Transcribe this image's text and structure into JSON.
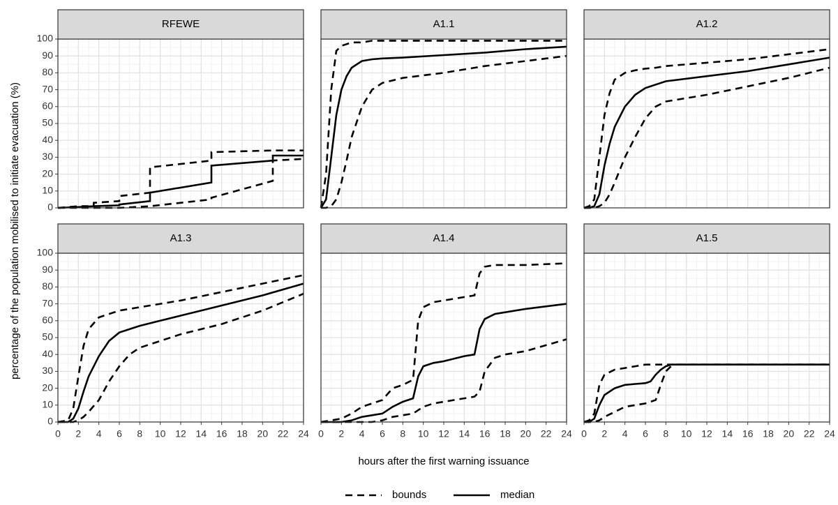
{
  "chart_data": [
    {
      "type": "line",
      "title": "RFEWE",
      "xlim": [
        0,
        24
      ],
      "ylim": [
        0,
        100
      ],
      "xticks": [
        0,
        2,
        4,
        6,
        8,
        10,
        12,
        14,
        16,
        18,
        20,
        22,
        24
      ],
      "yticks": [
        0,
        10,
        20,
        30,
        40,
        50,
        60,
        70,
        80,
        90,
        100
      ],
      "grid": true,
      "x": [
        0,
        2,
        3.5,
        3.5,
        6,
        6,
        9,
        9,
        15,
        15,
        21,
        21,
        24
      ],
      "series": [
        {
          "name": "bounds",
          "color": "#000000",
          "linestyle": "dashed",
          "values": [
            0,
            1,
            1,
            3,
            4,
            7,
            9,
            24,
            28,
            33,
            34,
            34,
            34
          ]
        },
        {
          "name": "bounds",
          "color": "#000000",
          "linestyle": "dashed",
          "values": [
            0,
            0,
            0,
            0,
            0,
            0,
            1,
            1,
            5,
            6,
            16,
            28,
            29
          ]
        },
        {
          "name": "median",
          "color": "#000000",
          "linestyle": "solid",
          "values": [
            0,
            0.5,
            1,
            1,
            1.5,
            2,
            4,
            9,
            15,
            25,
            28,
            31,
            31
          ]
        }
      ]
    },
    {
      "type": "line",
      "title": "A1.1",
      "xlim": [
        0,
        24
      ],
      "ylim": [
        0,
        100
      ],
      "xticks": [
        0,
        2,
        4,
        6,
        8,
        10,
        12,
        14,
        16,
        18,
        20,
        22,
        24
      ],
      "yticks": [
        0,
        10,
        20,
        30,
        40,
        50,
        60,
        70,
        80,
        90,
        100
      ],
      "grid": true,
      "x": [
        0,
        0.5,
        1,
        1.5,
        2,
        2.5,
        3,
        4,
        5,
        6,
        8,
        12,
        16,
        20,
        24
      ],
      "series": [
        {
          "name": "bounds",
          "color": "#000000",
          "linestyle": "dashed",
          "values": [
            0,
            20,
            70,
            93,
            96,
            97,
            98,
            98,
            99,
            99,
            99,
            99,
            99,
            99,
            99
          ]
        },
        {
          "name": "bounds",
          "color": "#000000",
          "linestyle": "dashed",
          "values": [
            0,
            0,
            1,
            5,
            15,
            28,
            42,
            60,
            70,
            74,
            77,
            80,
            84,
            87,
            90
          ]
        },
        {
          "name": "median",
          "color": "#000000",
          "linestyle": "solid",
          "values": [
            0,
            5,
            30,
            55,
            70,
            78,
            83,
            87,
            88,
            88.5,
            89,
            90.5,
            92,
            94,
            95.5
          ]
        }
      ]
    },
    {
      "type": "line",
      "title": "A1.2",
      "xlim": [
        0,
        24
      ],
      "ylim": [
        0,
        100
      ],
      "xticks": [
        0,
        2,
        4,
        6,
        8,
        10,
        12,
        14,
        16,
        18,
        20,
        22,
        24
      ],
      "yticks": [
        0,
        10,
        20,
        30,
        40,
        50,
        60,
        70,
        80,
        90,
        100
      ],
      "grid": true,
      "x": [
        0,
        0.5,
        1,
        1.5,
        2,
        2.5,
        3,
        4,
        5,
        6,
        7,
        8,
        12,
        16,
        20,
        24
      ],
      "series": [
        {
          "name": "bounds",
          "color": "#000000",
          "linestyle": "dashed",
          "values": [
            0,
            1,
            5,
            30,
            55,
            68,
            76,
            80,
            81.5,
            82.5,
            83,
            84,
            86,
            88,
            91,
            94
          ]
        },
        {
          "name": "bounds",
          "color": "#000000",
          "linestyle": "dashed",
          "values": [
            0,
            0,
            0,
            1,
            3,
            8,
            15,
            30,
            42,
            53,
            60,
            63,
            67,
            72,
            77,
            83
          ]
        },
        {
          "name": "median",
          "color": "#000000",
          "linestyle": "solid",
          "values": [
            0,
            0,
            1,
            8,
            25,
            38,
            48,
            60,
            67,
            71,
            73,
            75,
            78,
            81,
            85,
            89
          ]
        }
      ]
    },
    {
      "type": "line",
      "title": "A1.3",
      "xlim": [
        0,
        24
      ],
      "ylim": [
        0,
        100
      ],
      "xticks": [
        0,
        2,
        4,
        6,
        8,
        10,
        12,
        14,
        16,
        18,
        20,
        22,
        24
      ],
      "yticks": [
        0,
        10,
        20,
        30,
        40,
        50,
        60,
        70,
        80,
        90,
        100
      ],
      "grid": true,
      "x": [
        0,
        1,
        1.5,
        2,
        2.5,
        3,
        4,
        5,
        6,
        7,
        8,
        10,
        12,
        16,
        20,
        24
      ],
      "series": [
        {
          "name": "bounds",
          "color": "#000000",
          "linestyle": "dashed",
          "values": [
            0,
            1,
            8,
            27,
            45,
            55,
            62,
            64,
            66,
            67,
            68,
            70,
            72,
            77,
            82,
            87
          ]
        },
        {
          "name": "bounds",
          "color": "#000000",
          "linestyle": "dashed",
          "values": [
            0,
            0,
            0,
            1,
            3,
            6,
            13,
            24,
            33,
            40,
            44,
            48,
            52,
            58,
            66,
            76
          ]
        },
        {
          "name": "median",
          "color": "#000000",
          "linestyle": "solid",
          "values": [
            0,
            0,
            2,
            8,
            18,
            27,
            39,
            48,
            53,
            55,
            57,
            60,
            63,
            69,
            75,
            82
          ]
        }
      ]
    },
    {
      "type": "line",
      "title": "A1.4",
      "xlim": [
        0,
        24
      ],
      "ylim": [
        0,
        100
      ],
      "xticks": [
        0,
        2,
        4,
        6,
        8,
        10,
        12,
        14,
        16,
        18,
        20,
        22,
        24
      ],
      "yticks": [
        0,
        10,
        20,
        30,
        40,
        50,
        60,
        70,
        80,
        90,
        100
      ],
      "grid": true,
      "x": [
        0,
        2,
        3,
        4,
        5,
        6,
        7,
        8,
        9,
        9.5,
        10,
        11,
        12,
        14,
        15,
        15.5,
        16,
        17,
        18,
        20,
        24
      ],
      "series": [
        {
          "name": "bounds",
          "color": "#000000",
          "linestyle": "dashed",
          "values": [
            0,
            2,
            5,
            9,
            11,
            13,
            20,
            22,
            25,
            60,
            68,
            71,
            72,
            74,
            75,
            88,
            92,
            93,
            93,
            93,
            94
          ]
        },
        {
          "name": "bounds",
          "color": "#000000",
          "linestyle": "dashed",
          "values": [
            0,
            0,
            0,
            0,
            0,
            1,
            3,
            4,
            5,
            7,
            9,
            11,
            12,
            14,
            15,
            18,
            30,
            38,
            40,
            42,
            49
          ]
        },
        {
          "name": "median",
          "color": "#000000",
          "linestyle": "solid",
          "values": [
            0,
            0,
            1,
            3,
            4,
            5,
            9,
            12,
            14,
            27,
            33,
            35,
            36,
            39,
            40,
            55,
            61,
            64,
            65,
            67,
            70
          ]
        }
      ]
    },
    {
      "type": "line",
      "title": "A1.5",
      "xlim": [
        0,
        24
      ],
      "ylim": [
        0,
        100
      ],
      "xticks": [
        0,
        2,
        4,
        6,
        8,
        10,
        12,
        14,
        16,
        18,
        20,
        22,
        24
      ],
      "yticks": [
        0,
        10,
        20,
        30,
        40,
        50,
        60,
        70,
        80,
        90,
        100
      ],
      "grid": true,
      "x": [
        0,
        0.5,
        1,
        1.5,
        2,
        3,
        4,
        5,
        6,
        6.5,
        7,
        7.5,
        8,
        8.5,
        9,
        12,
        16,
        20,
        24
      ],
      "series": [
        {
          "name": "bounds",
          "color": "#000000",
          "linestyle": "dashed",
          "values": [
            0,
            1,
            5,
            22,
            28,
            31,
            32,
            33,
            34,
            34,
            34,
            34,
            34,
            34,
            34,
            34,
            34,
            34,
            34
          ]
        },
        {
          "name": "bounds",
          "color": "#000000",
          "linestyle": "dashed",
          "values": [
            0,
            0,
            0,
            1,
            3,
            6,
            9,
            10,
            11,
            12,
            13,
            22,
            30,
            33,
            34,
            34,
            34,
            34,
            34
          ]
        },
        {
          "name": "median",
          "color": "#000000",
          "linestyle": "solid",
          "values": [
            0,
            0,
            2,
            10,
            16,
            20,
            22,
            22.5,
            23,
            24,
            28,
            31,
            33,
            34,
            34,
            34,
            34,
            34,
            34
          ]
        }
      ]
    }
  ],
  "x_label": "hours after the first warning issuance",
  "y_label": "percentage of the population mobilised to initiate evacuation (%)"
}
